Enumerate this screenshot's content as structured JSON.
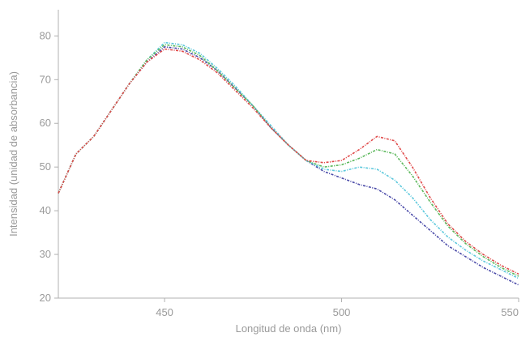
{
  "chart_data": {
    "type": "line",
    "title": "",
    "xlabel": "Longitud de onda (nm)",
    "ylabel": "Intensidad (unidad de absorbancia)",
    "xlim": [
      420,
      550
    ],
    "ylim": [
      20,
      86
    ],
    "xticks": [
      450,
      500,
      550
    ],
    "yticks": [
      20,
      30,
      40,
      50,
      60,
      70,
      80
    ],
    "grid": false,
    "legend": "none",
    "x": [
      420,
      425,
      430,
      435,
      440,
      445,
      450,
      455,
      460,
      465,
      470,
      475,
      480,
      485,
      490,
      495,
      500,
      505,
      510,
      515,
      520,
      525,
      530,
      535,
      540,
      545,
      550
    ],
    "series": [
      {
        "color": "#4a4aa8",
        "values": [
          44,
          53,
          57,
          63,
          69,
          74,
          77.5,
          77,
          75,
          72,
          68,
          64,
          59,
          55,
          51.5,
          49,
          47.5,
          46,
          45,
          42.5,
          39,
          35.5,
          32,
          29.5,
          27,
          25,
          23
        ]
      },
      {
        "color": "#5cc8dc",
        "values": [
          44,
          53,
          57,
          63,
          69,
          74.5,
          78.5,
          78,
          76,
          72.5,
          68.5,
          64,
          59.5,
          55,
          51.5,
          49.5,
          49,
          50,
          49.5,
          47,
          43,
          38,
          34,
          31,
          28.5,
          26.5,
          24.5
        ]
      },
      {
        "color": "#5cb85c",
        "values": [
          44,
          53,
          57,
          63,
          69,
          74.5,
          78,
          77.5,
          75.5,
          72,
          68,
          64,
          59,
          55,
          51.5,
          50,
          50.5,
          52,
          54,
          53,
          48,
          42,
          36.5,
          32.5,
          29.5,
          27,
          25
        ]
      },
      {
        "color": "#e04a4a",
        "values": [
          44,
          53,
          57,
          63,
          69,
          74,
          77,
          76.5,
          74.5,
          71.5,
          67.5,
          63.5,
          59,
          55,
          51.5,
          51,
          51.5,
          54,
          57,
          56,
          50,
          43,
          37,
          33,
          30,
          27.5,
          25.5
        ]
      }
    ]
  }
}
